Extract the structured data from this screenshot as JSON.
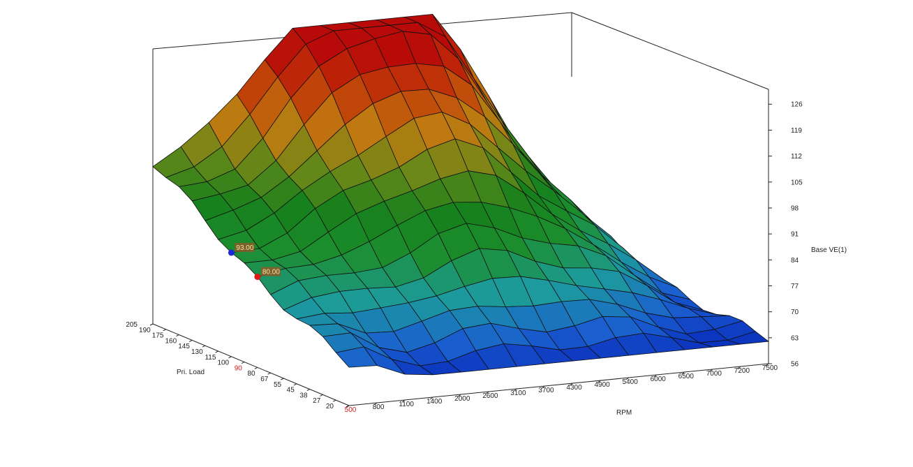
{
  "chart_data": {
    "type": "surface3d",
    "title": "",
    "xlabel": "RPM",
    "ylabel": "Pri. Load",
    "zlabel": "Base VE(1)",
    "x_ticks": [
      "500",
      "800",
      "1100",
      "1400",
      "2000",
      "2600",
      "3100",
      "3700",
      "4300",
      "4900",
      "5400",
      "6000",
      "6500",
      "7000",
      "7200",
      "7500"
    ],
    "y_ticks": [
      "20",
      "27",
      "38",
      "45",
      "55",
      "67",
      "80",
      "90",
      "100",
      "115",
      "130",
      "145",
      "160",
      "175",
      "190",
      "205"
    ],
    "z_ticks": [
      "56",
      "63",
      "70",
      "77",
      "84",
      "91",
      "98",
      "105",
      "112",
      "119",
      "126"
    ],
    "zlim": [
      56,
      130
    ],
    "highlighted_x_tick": "500",
    "highlighted_y_tick": "90",
    "grid_rpm": [
      500,
      800,
      1100,
      1400,
      2000,
      2600,
      3100,
      3700,
      4300,
      4900,
      5400,
      6000,
      6500,
      7000,
      7200,
      7500
    ],
    "grid_load": [
      20,
      27,
      38,
      45,
      55,
      67,
      80,
      90,
      100,
      115,
      130,
      145,
      160,
      175,
      190,
      205
    ],
    "markers": [
      {
        "label": "93.00",
        "color": "#1a2ad8",
        "rpm": 500,
        "load": 115,
        "value": 93.0
      },
      {
        "label": "80.00",
        "color": "#e01818",
        "rpm": 500,
        "load": 90,
        "value": 80.0
      }
    ],
    "colormap": [
      "#0010b0",
      "#1a5fd0",
      "#1c9b9c",
      "#1c8e2e",
      "#16801c",
      "#6c8818",
      "#c07a10",
      "#c03a08",
      "#b80a08"
    ]
  }
}
